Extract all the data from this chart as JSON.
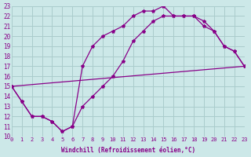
{
  "xlabel": "Windchill (Refroidissement éolien,°C)",
  "xlim": [
    0,
    23
  ],
  "ylim": [
    10,
    23
  ],
  "xticks": [
    0,
    1,
    2,
    3,
    4,
    5,
    6,
    7,
    8,
    9,
    10,
    11,
    12,
    13,
    14,
    15,
    16,
    17,
    18,
    19,
    20,
    21,
    22,
    23
  ],
  "yticks": [
    10,
    11,
    12,
    13,
    14,
    15,
    16,
    17,
    18,
    19,
    20,
    21,
    22,
    23
  ],
  "bg_color": "#cce8e8",
  "grid_color": "#aacccc",
  "line_color": "#880088",
  "line1_x": [
    0,
    1,
    2,
    3,
    4,
    5,
    6,
    7,
    8,
    9,
    10,
    11,
    12,
    13,
    14,
    15,
    16,
    17,
    18,
    19,
    20,
    21,
    22,
    23
  ],
  "line1_y": [
    15,
    13.5,
    12,
    12,
    11.5,
    10.5,
    11,
    17,
    19,
    20,
    20.5,
    21,
    22,
    22.5,
    22.5,
    23,
    22,
    22,
    22,
    21,
    20.5,
    19,
    18.5,
    17
  ],
  "line2_x": [
    0,
    1,
    2,
    3,
    4,
    5,
    6,
    7,
    8,
    9,
    10,
    11,
    12,
    13,
    14,
    15,
    16,
    17,
    18,
    19,
    20,
    21,
    22,
    23
  ],
  "line2_y": [
    15,
    13.5,
    12,
    12,
    11.5,
    10.5,
    11,
    13,
    14,
    15,
    16,
    17.5,
    19.5,
    20.5,
    21.5,
    22,
    22,
    22,
    22,
    21.5,
    20.5,
    19,
    18.5,
    17
  ],
  "line3_x": [
    0,
    23
  ],
  "line3_y": [
    15,
    17
  ]
}
